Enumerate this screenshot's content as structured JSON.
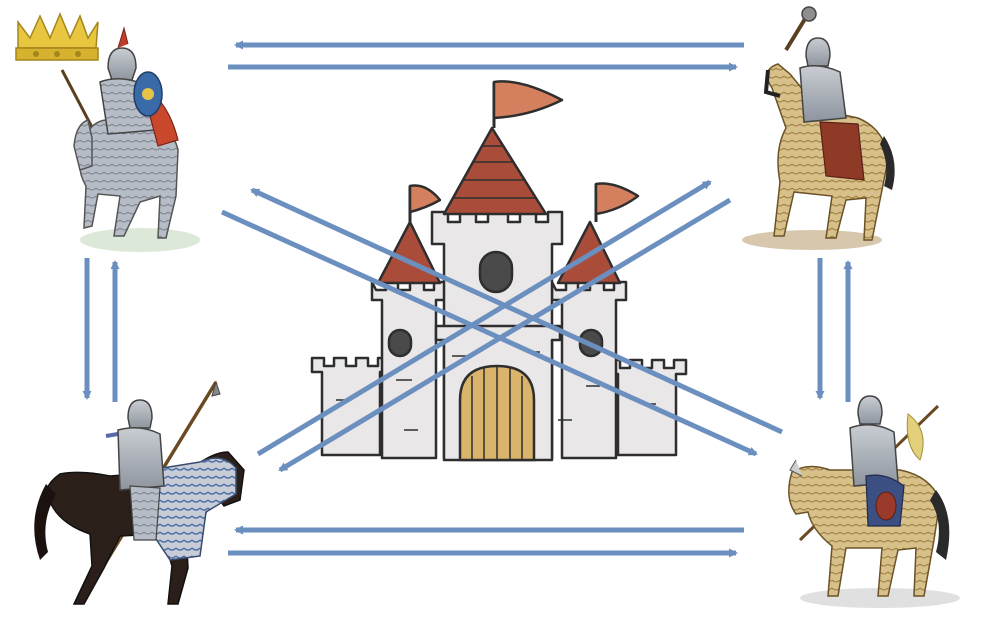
{
  "diagram": {
    "colors": {
      "arrow": "#6b8fbf",
      "castle_stone": "#e9e7e8",
      "castle_outline": "#2e2e2e",
      "roof": "#a94c3a",
      "flag": "#d4805f",
      "door": "#d9b46a"
    },
    "nodes": [
      {
        "name": "top-left-knight",
        "icon": "crowned-mounted-knight-icon",
        "has_crown": true
      },
      {
        "name": "top-right-knight",
        "icon": "mounted-knight-with-mace-icon",
        "has_crown": false
      },
      {
        "name": "bottom-left-knight",
        "icon": "mounted-lancer-icon",
        "has_crown": false
      },
      {
        "name": "bottom-right-knight",
        "icon": "mounted-knight-with-spear-icon",
        "has_crown": false
      }
    ],
    "center": {
      "name": "castle",
      "icon": "castle-icon"
    },
    "connections": [
      {
        "from": "top-right-knight",
        "to": "top-left-knight"
      },
      {
        "from": "top-left-knight",
        "to": "top-right-knight"
      },
      {
        "from": "bottom-right-knight",
        "to": "bottom-left-knight"
      },
      {
        "from": "bottom-left-knight",
        "to": "bottom-right-knight"
      },
      {
        "from": "top-left-knight",
        "to": "bottom-left-knight"
      },
      {
        "from": "bottom-left-knight",
        "to": "top-left-knight"
      },
      {
        "from": "top-right-knight",
        "to": "bottom-right-knight"
      },
      {
        "from": "bottom-right-knight",
        "to": "top-right-knight"
      },
      {
        "from": "top-left-knight",
        "to": "bottom-right-knight"
      },
      {
        "from": "bottom-right-knight",
        "to": "top-left-knight"
      },
      {
        "from": "top-right-knight",
        "to": "bottom-left-knight"
      },
      {
        "from": "bottom-left-knight",
        "to": "top-right-knight"
      }
    ]
  }
}
